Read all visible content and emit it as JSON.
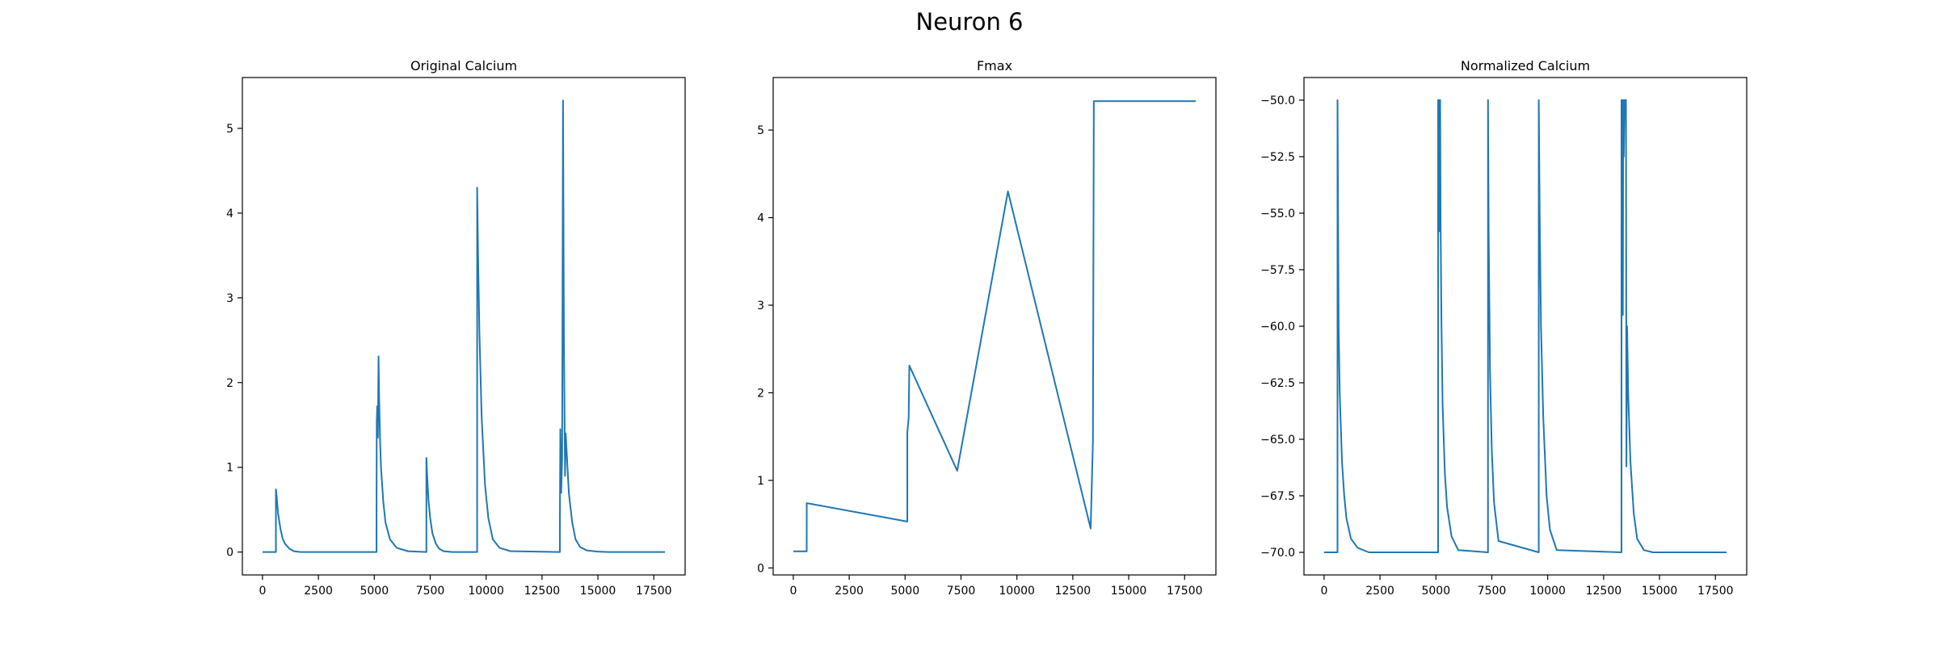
{
  "figure": {
    "title": "Neuron 6",
    "line_color": "#1f77b4"
  },
  "chart_data": [
    {
      "type": "line",
      "title": "Original Calcium",
      "xlabel": "",
      "ylabel": "",
      "xlim": [
        -900,
        18900
      ],
      "ylim": [
        -0.27,
        5.6
      ],
      "xticks": [
        0,
        2500,
        5000,
        7500,
        10000,
        12500,
        15000,
        17500
      ],
      "yticks": [
        0,
        1,
        2,
        3,
        4,
        5
      ],
      "grid": false,
      "series": [
        {
          "name": "calcium",
          "x": [
            0,
            599,
            600,
            610,
            650,
            700,
            800,
            900,
            1000,
            1200,
            1400,
            1700,
            2100,
            2600,
            5099,
            5100,
            5110,
            5130,
            5160,
            5190,
            5210,
            5260,
            5300,
            5400,
            5500,
            5700,
            6000,
            6500,
            7329,
            7330,
            7360,
            7420,
            7500,
            7600,
            7750,
            7900,
            8100,
            8500,
            9599,
            9600,
            9640,
            9700,
            9800,
            9950,
            10100,
            10300,
            10600,
            11100,
            13299,
            13300,
            13320,
            13360,
            13400,
            13440,
            13480,
            13530,
            13560,
            13600,
            13700,
            13850,
            14000,
            14200,
            14500,
            15000,
            15500,
            18000
          ],
          "y": [
            0,
            0,
            0.74,
            0.72,
            0.6,
            0.45,
            0.28,
            0.16,
            0.1,
            0.04,
            0.01,
            0,
            0,
            0,
            0,
            0.5,
            1.55,
            1.72,
            1.35,
            2.31,
            1.9,
            1.3,
            1.0,
            0.6,
            0.35,
            0.15,
            0.05,
            0.01,
            0,
            1.11,
            0.92,
            0.62,
            0.4,
            0.22,
            0.1,
            0.04,
            0.01,
            0,
            0,
            4.3,
            3.5,
            2.6,
            1.6,
            0.8,
            0.4,
            0.15,
            0.05,
            0.01,
            0,
            0.4,
            1.45,
            0.7,
            1.1,
            5.33,
            2.5,
            0.9,
            1.4,
            1.2,
            0.7,
            0.35,
            0.15,
            0.06,
            0.02,
            0.005,
            0,
            0
          ]
        }
      ]
    },
    {
      "type": "line",
      "title": "Fmax",
      "xlabel": "",
      "ylabel": "",
      "xlim": [
        -900,
        18900
      ],
      "ylim": [
        -0.08,
        5.6
      ],
      "xticks": [
        0,
        2500,
        5000,
        7500,
        10000,
        12500,
        15000,
        17500
      ],
      "yticks": [
        0,
        1,
        2,
        3,
        4,
        5
      ],
      "grid": false,
      "series": [
        {
          "name": "fmax",
          "x": [
            0,
            599,
            600,
            5099,
            5100,
            5160,
            5190,
            7329,
            9599,
            13299,
            13400,
            13440,
            18000
          ],
          "y": [
            0.19,
            0.19,
            0.74,
            0.53,
            1.55,
            1.72,
            2.31,
            1.11,
            4.3,
            0.45,
            1.45,
            5.33,
            5.33
          ]
        }
      ]
    },
    {
      "type": "line",
      "title": "Normalized Calcium",
      "xlabel": "",
      "ylabel": "",
      "xlim": [
        -900,
        18900
      ],
      "ylim": [
        -71.0,
        -49.0
      ],
      "xticks": [
        0,
        2500,
        5000,
        7500,
        10000,
        12500,
        15000,
        17500
      ],
      "yticks": [
        -70.0,
        -67.5,
        -65.0,
        -62.5,
        -60.0,
        -57.5,
        -55.0,
        -52.5,
        -50.0
      ],
      "ytick_labels": [
        "−70.0",
        "−67.5",
        "−65.0",
        "−62.5",
        "−60.0",
        "−57.5",
        "−55.0",
        "−52.5",
        "−50.0"
      ],
      "grid": false,
      "series": [
        {
          "name": "normalized",
          "x": [
            0,
            599,
            600,
            620,
            650,
            700,
            800,
            900,
            1000,
            1200,
            1500,
            2000,
            5099,
            5100,
            5120,
            5150,
            5170,
            5190,
            5210,
            5250,
            5300,
            5400,
            5500,
            5700,
            6000,
            7329,
            7330,
            7360,
            7420,
            7500,
            7600,
            7800,
            9599,
            9600,
            9640,
            9700,
            9800,
            9950,
            10100,
            10400,
            13299,
            13300,
            13330,
            13360,
            13380,
            13400,
            13440,
            13480,
            13500,
            13520,
            13550,
            13600,
            13700,
            13850,
            14000,
            14300,
            14700,
            18000
          ],
          "y": [
            -70,
            -70,
            -50,
            -54,
            -60,
            -63,
            -66,
            -67.5,
            -68.5,
            -69.4,
            -69.8,
            -70,
            -70,
            -50,
            -50,
            -55.8,
            -50,
            -50,
            -55.5,
            -60,
            -63.5,
            -66.5,
            -68,
            -69.3,
            -69.9,
            -70,
            -50,
            -56,
            -62,
            -65.5,
            -67.8,
            -69.5,
            -70,
            -50,
            -55,
            -60,
            -64,
            -67.5,
            -69,
            -69.9,
            -70,
            -50,
            -50,
            -59.5,
            -50,
            -52.5,
            -50,
            -50,
            -50,
            -66.2,
            -60,
            -63,
            -66,
            -68.3,
            -69.4,
            -69.9,
            -70,
            -70
          ]
        }
      ]
    }
  ]
}
